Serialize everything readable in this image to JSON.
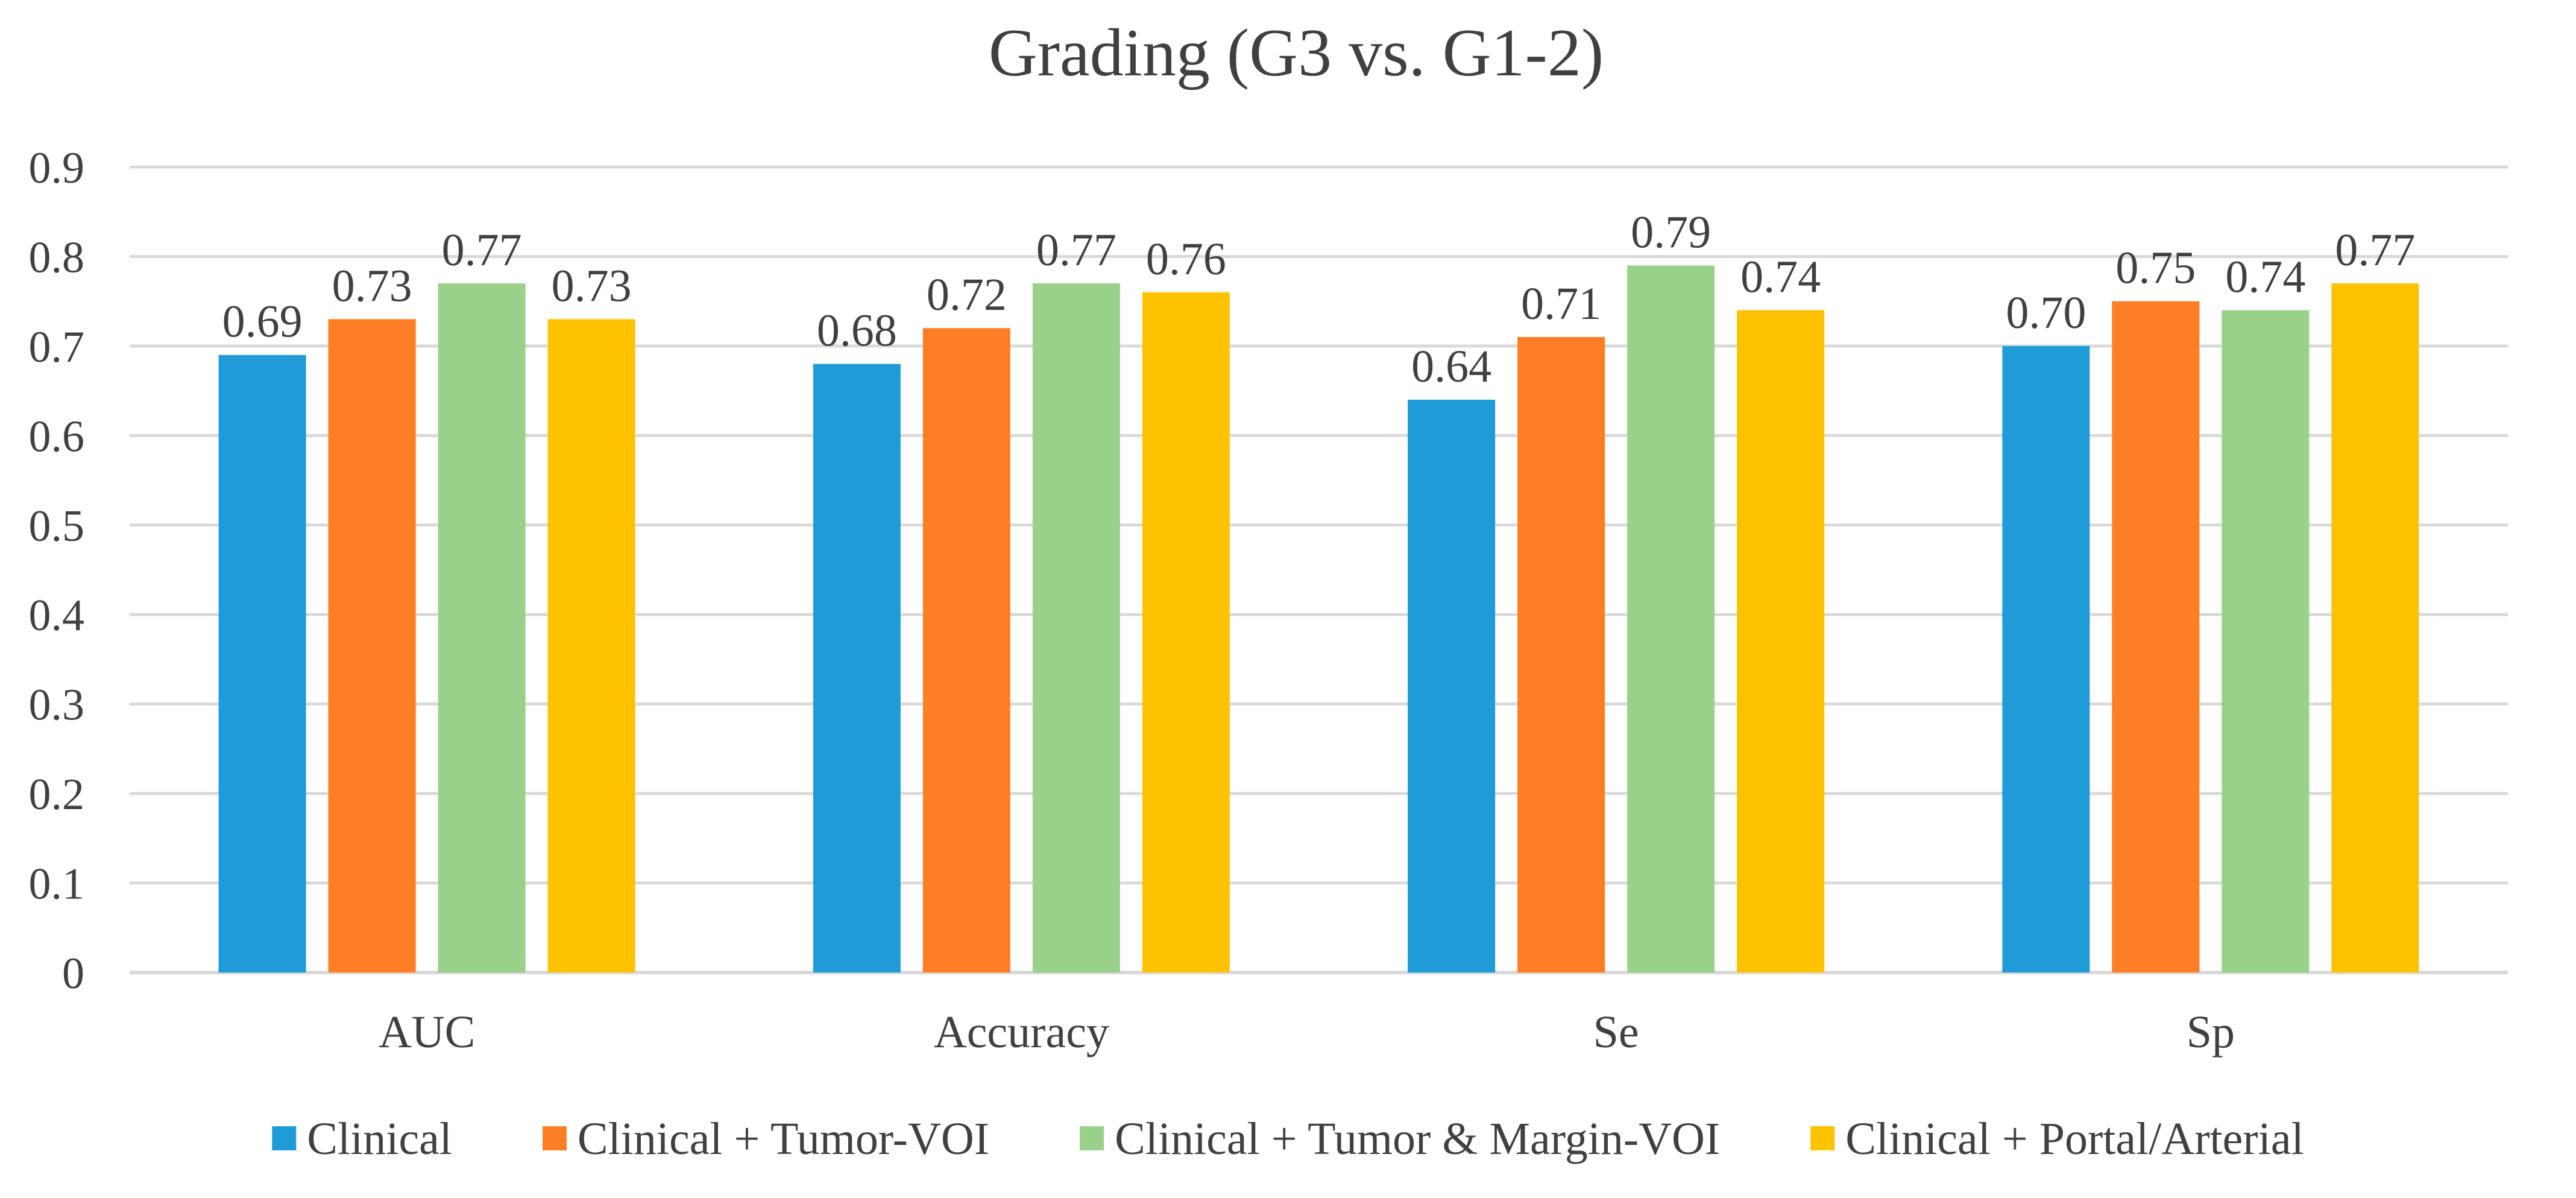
{
  "chart_data": {
    "type": "bar",
    "title": "Grading (G3 vs. G1-2)",
    "xlabel": "",
    "ylabel": "",
    "categories": [
      "AUC",
      "Accuracy",
      "Se",
      "Sp"
    ],
    "series": [
      {
        "name": "Clinical",
        "color": "#1f9bd7",
        "values": [
          0.69,
          0.68,
          0.64,
          0.7
        ],
        "labels": [
          "0.69",
          "0.68",
          "0.64",
          "0.70"
        ]
      },
      {
        "name": "Clinical + Tumor-VOI",
        "color": "#fd7e25",
        "values": [
          0.73,
          0.72,
          0.71,
          0.75
        ],
        "labels": [
          "0.73",
          "0.72",
          "0.71",
          "0.75"
        ]
      },
      {
        "name": "Clinical + Tumor & Margin-VOI",
        "color": "#99d18b",
        "values": [
          0.77,
          0.77,
          0.79,
          0.74
        ],
        "labels": [
          "0.77",
          "0.77",
          "0.79",
          "0.74"
        ]
      },
      {
        "name": "Clinical + Portal/Arterial",
        "color": "#fec200",
        "values": [
          0.73,
          0.76,
          0.74,
          0.77
        ],
        "labels": [
          "0.73",
          "0.76",
          "0.74",
          "0.77"
        ]
      }
    ],
    "ylim": [
      0,
      0.9
    ],
    "yticks": [
      0,
      0.1,
      0.2,
      0.3,
      0.4,
      0.5,
      0.6,
      0.7,
      0.8,
      0.9
    ],
    "ytick_labels": [
      "0",
      "0.1",
      "0.2",
      "0.3",
      "0.4",
      "0.5",
      "0.6",
      "0.7",
      "0.8",
      "0.9"
    ],
    "grid": true,
    "legend_position": "bottom",
    "colors": {
      "grid": "#d9d9d9",
      "text": "#404040"
    }
  }
}
